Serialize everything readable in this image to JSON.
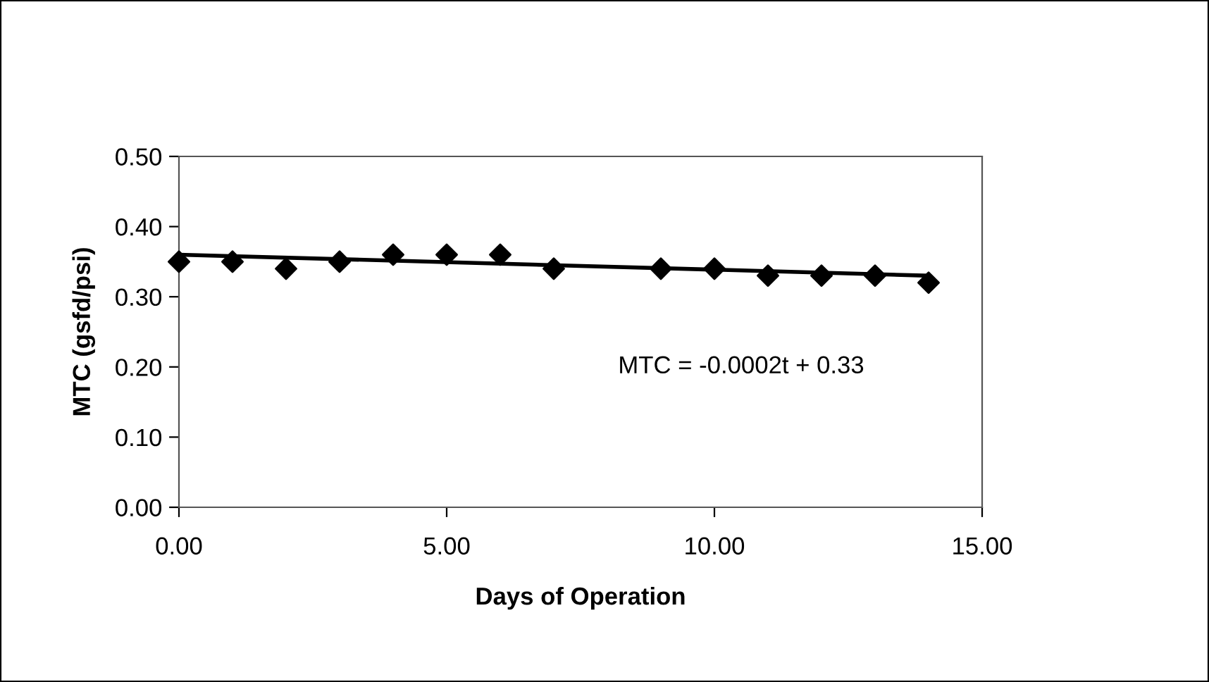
{
  "chart_data": {
    "type": "scatter",
    "xlabel": "Days of Operation",
    "ylabel": "MTC (gsfd/psi)",
    "series": [
      {
        "color": "#000000",
        "marker": "diamond",
        "x": [
          0,
          1,
          2,
          3,
          4,
          5,
          6,
          7,
          9,
          10,
          11,
          12,
          13,
          14
        ],
        "values": [
          0.35,
          0.35,
          0.34,
          0.35,
          0.36,
          0.36,
          0.36,
          0.34,
          0.34,
          0.34,
          0.33,
          0.33,
          0.33,
          0.32
        ]
      },
      {
        "type": "line",
        "color": "#000000",
        "marker": "none",
        "line_style": "solid",
        "x": [
          0,
          14
        ],
        "values": [
          0.36,
          0.33
        ]
      }
    ],
    "annotations": [
      "MTC = -0.0002t + 0.33"
    ],
    "xlim": [
      0,
      15
    ],
    "xticks": [
      {
        "value": 0,
        "label": "0.00"
      },
      {
        "value": 5,
        "label": "5.00"
      },
      {
        "value": 10,
        "label": "10.00"
      },
      {
        "value": 15,
        "label": "15.00"
      }
    ],
    "ylim": [
      0,
      0.5
    ],
    "yticks": [
      {
        "value": 0,
        "label": "0.00"
      },
      {
        "value": 0.1,
        "label": "0.10"
      },
      {
        "value": 0.2,
        "label": "0.20"
      },
      {
        "value": 0.3,
        "label": "0.30"
      },
      {
        "value": 0.4,
        "label": "0.40"
      },
      {
        "value": 0.5,
        "label": "0.50"
      }
    ],
    "grid": false,
    "legend": false
  }
}
